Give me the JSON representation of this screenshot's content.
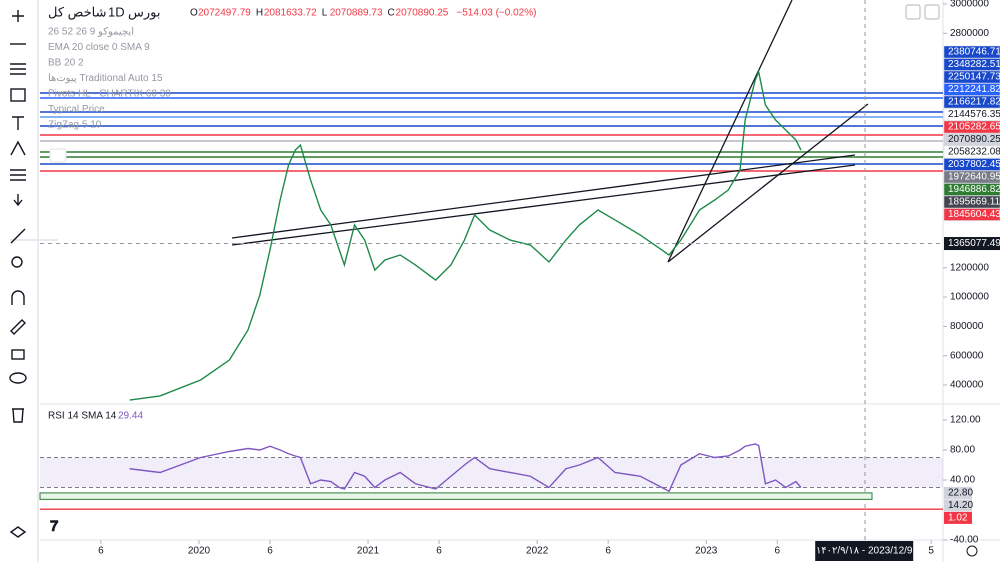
{
  "header": {
    "symbol": "شاخص کل",
    "interval": "1D",
    "exchange": "بورس",
    "ohlc": [
      {
        "key": "O",
        "value": 2072497.79
      },
      {
        "key": "H",
        "value": 2081633.72
      },
      {
        "key": "L",
        "value": 2070889.73
      },
      {
        "key": "C",
        "value": 2070890.25
      }
    ],
    "change": "−514.03 (−0.02%)"
  },
  "indicators": [
    "ایچیموکو 9 26 52 26",
    "EMA 20 close 0 SMA 9",
    "BB 20 2",
    "پیوت‌ها Traditional Auto 15",
    "Pivots HL · CHARTIX 60 30",
    "Typical Price",
    "ZigZag 5 10"
  ],
  "price_pane": {
    "ylim": [
      270000,
      3027000
    ],
    "yticks": [
      3000000,
      2800000,
      1200000,
      1000000,
      800000,
      600000,
      400000
    ],
    "crosshair_price": 1365077.49,
    "tags": [
      {
        "value": 2380746.71,
        "fill": "#1848cc",
        "ink": "#ffffff"
      },
      {
        "value": 2348282.51,
        "fill": "#1848cc",
        "ink": "#ffffff"
      },
      {
        "value": 2250147.73,
        "fill": "#1848cc",
        "ink": "#ffffff"
      },
      {
        "value": 2212241.82,
        "fill": "#2962ff",
        "ink": "#ffffff"
      },
      {
        "value": 2166217.82,
        "fill": "#1848cc",
        "ink": "#ffffff"
      },
      {
        "value": 2144576.35,
        "fill": "#ffffff",
        "ink": "#131722"
      },
      {
        "value": 2105282.65,
        "fill": "#f23645",
        "ink": "#ffffff"
      },
      {
        "value": 2070890.25,
        "fill": "#d1d4dc",
        "ink": "#131722"
      },
      {
        "value": 2058232.08,
        "fill": "#ffffff",
        "ink": "#131722"
      },
      {
        "value": 2037802.45,
        "fill": "#1848cc",
        "ink": "#ffffff"
      },
      {
        "value": 1972640.95,
        "fill": "#787b86",
        "ink": "#ffffff"
      },
      {
        "value": 1946886.82,
        "fill": "#2e7d32",
        "ink": "#ffffff"
      },
      {
        "value": 1895669.11,
        "fill": "#434651",
        "ink": "#ffffff"
      },
      {
        "value": 1845604.43,
        "fill": "#f23645",
        "ink": "#ffffff"
      }
    ],
    "series": {
      "color": "#1e8a4a",
      "x": [
        2019.59,
        2019.77,
        2020.01,
        2020.18,
        2020.29,
        2020.36,
        2020.42,
        2020.48,
        2020.53,
        2020.57,
        2020.6,
        2020.66,
        2020.72,
        2020.78,
        2020.83,
        2020.86,
        2020.92,
        2020.98,
        2021.04,
        2021.1,
        2021.19,
        2021.28,
        2021.4,
        2021.49,
        2021.57,
        2021.63,
        2021.72,
        2021.84,
        2021.96,
        2022.07,
        2022.17,
        2022.25,
        2022.36,
        2022.46,
        2022.61,
        2022.78,
        2022.85,
        2022.96,
        2023.05,
        2023.13,
        2023.2,
        2023.23,
        2023.29,
        2023.31,
        2023.35,
        2023.41,
        2023.47,
        2023.53,
        2023.56
      ],
      "values": [
        297000,
        325000,
        434000,
        570000,
        775000,
        1014000,
        1321000,
        1662000,
        1901000,
        2003000,
        2037000,
        1799000,
        1594000,
        1492000,
        1321000,
        1219000,
        1492000,
        1389000,
        1184000,
        1253000,
        1287000,
        1219000,
        1116000,
        1219000,
        1389000,
        1560000,
        1457000,
        1389000,
        1355000,
        1239000,
        1389000,
        1492000,
        1594000,
        1526000,
        1423000,
        1287000,
        1389000,
        1594000,
        1662000,
        1730000,
        1867000,
        2208000,
        2481000,
        2536000,
        2310000,
        2208000,
        2140000,
        2072000,
        2003000
      ]
    }
  },
  "rsi_pane": {
    "title": "RSI 14 SMA 14",
    "value": 29.44,
    "ylim": [
      -40,
      141.33
    ],
    "band": [
      30,
      70
    ],
    "yticks": [
      {
        "value": 120,
        "label": "120.00"
      },
      {
        "value": 80,
        "label": "80.00"
      },
      {
        "value": 40,
        "label": "40.00"
      },
      {
        "value": -40,
        "label": "-40.00"
      }
    ],
    "tags": [
      {
        "value": 22.8,
        "label": "22.80",
        "fill": "#d1d4dc",
        "ink": "#131722"
      },
      {
        "value": 14.2,
        "label": "14.20",
        "fill": "#d1d4dc",
        "ink": "#131722"
      },
      {
        "value": 1.02,
        "fill": "#f23645",
        "ink": "#ffffff"
      }
    ],
    "color": "#7e57c2",
    "values": [
      55,
      50,
      70,
      78,
      82,
      80,
      85,
      80,
      75,
      72,
      70,
      35,
      40,
      38,
      30,
      28,
      50,
      45,
      30,
      40,
      50,
      35,
      28,
      45,
      60,
      70,
      55,
      50,
      45,
      30,
      55,
      60,
      70,
      50,
      45,
      25,
      60,
      75,
      70,
      72,
      80,
      85,
      88,
      86,
      35,
      40,
      30,
      38,
      30
    ]
  },
  "time_axis": {
    "xlim": [
      2019.06,
      2024.4
    ],
    "ticks": [
      {
        "value": 2019.42,
        "label": "6"
      },
      2020,
      {
        "value": 2020.42,
        "label": "6"
      },
      2021,
      {
        "value": 2021.42,
        "label": "6"
      },
      2022,
      {
        "value": 2022.42,
        "label": "6"
      },
      2023,
      {
        "value": 2023.42,
        "label": "6"
      },
      {
        "value": 2024.33,
        "label": "5"
      }
    ],
    "crosshair": 2023.94,
    "crosshair_label": "۱۴۰۲/۹/۱۸ - 2023/12/9"
  }
}
